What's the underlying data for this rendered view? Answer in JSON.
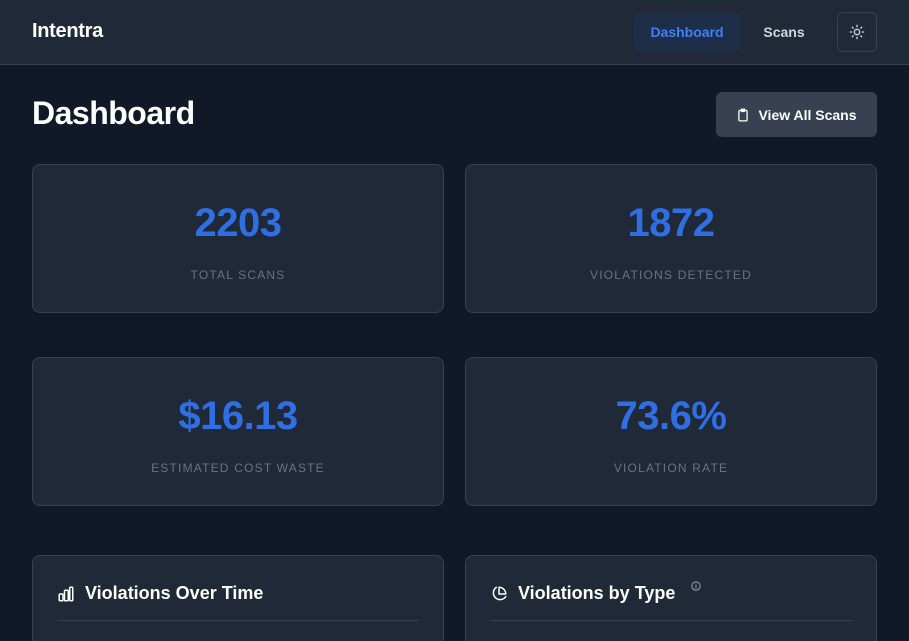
{
  "nav": {
    "brand": "Intentra",
    "links": [
      {
        "label": "Dashboard",
        "active": true
      },
      {
        "label": "Scans",
        "active": false
      }
    ],
    "theme_toggle_icon": "sun-icon"
  },
  "header": {
    "title": "Dashboard",
    "view_all_label": "View All Scans",
    "view_all_icon": "clipboard-icon"
  },
  "stats": [
    {
      "value": "2203",
      "label": "TOTAL SCANS"
    },
    {
      "value": "1872",
      "label": "VIOLATIONS DETECTED"
    },
    {
      "value": "$16.13",
      "label": "ESTIMATED COST WASTE"
    },
    {
      "value": "73.6%",
      "label": "VIOLATION RATE"
    }
  ],
  "charts": [
    {
      "title": "Violations Over Time",
      "icon": "bar-chart-icon"
    },
    {
      "title": "Violations by Type",
      "icon": "pie-chart-icon",
      "info_icon": "info-icon"
    }
  ],
  "colors": {
    "background": "#111827",
    "card": "#1f2937",
    "border": "#374151",
    "accent": "#2f6fe3",
    "muted": "#6b7280"
  }
}
